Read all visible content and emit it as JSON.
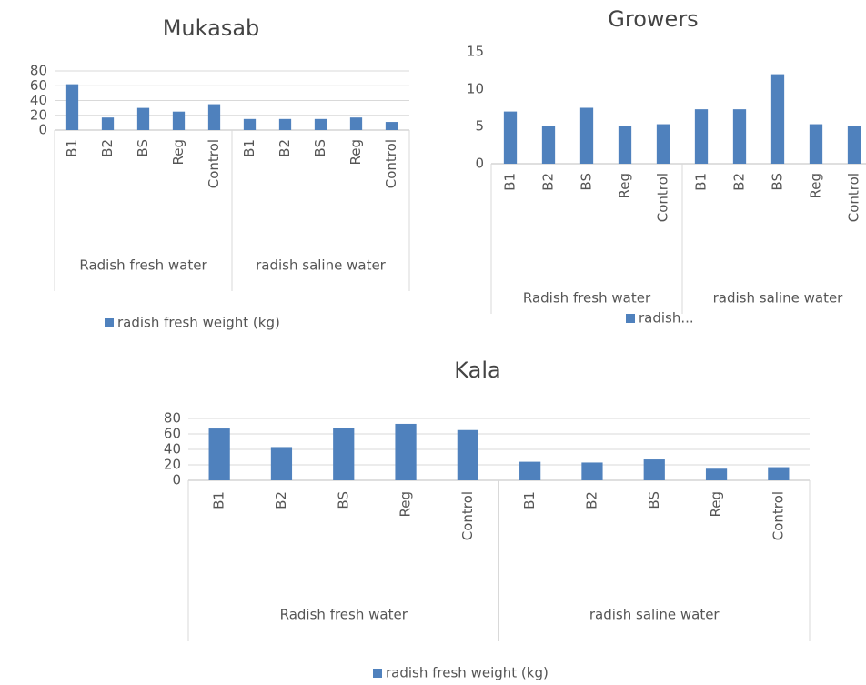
{
  "chart_data": [
    {
      "type": "bar",
      "title": "Mukasab",
      "categories": [
        "B1",
        "B2",
        "BS",
        "Reg",
        "Control",
        "B1",
        "B2",
        "BS",
        "Reg",
        "Control"
      ],
      "groups": [
        "Radish fresh water",
        "radish saline water"
      ],
      "series": [
        {
          "name": "radish fresh weight (kg)",
          "color": "#4f81bd",
          "values": [
            62,
            17,
            30,
            25,
            35,
            15,
            15,
            15,
            17,
            11
          ]
        }
      ],
      "ylim": [
        0,
        80
      ],
      "yticks": [
        0,
        20,
        40,
        60,
        80
      ],
      "grid": true
    },
    {
      "type": "bar",
      "title": "Growers",
      "categories": [
        "B1",
        "B2",
        "BS",
        "Reg",
        "Control",
        "B1",
        "B2",
        "BS",
        "Reg",
        "Control"
      ],
      "groups": [
        "Radish fresh water",
        "radish saline water"
      ],
      "series": [
        {
          "name": "radish...",
          "color": "#4f81bd",
          "values": [
            7,
            5,
            7.5,
            5,
            5.3,
            7.3,
            7.3,
            12,
            5.3,
            5
          ]
        }
      ],
      "ylim": [
        0,
        15
      ],
      "yticks": [
        0,
        5,
        10,
        15
      ],
      "grid": false
    },
    {
      "type": "bar",
      "title": "Kala",
      "categories": [
        "B1",
        "B2",
        "BS",
        "Reg",
        "Control",
        "B1",
        "B2",
        "BS",
        "Reg",
        "Control"
      ],
      "groups": [
        "Radish fresh water",
        "radish saline water"
      ],
      "series": [
        {
          "name": "radish fresh weight (kg)",
          "color": "#4f81bd",
          "values": [
            67,
            43,
            68,
            73,
            65,
            24,
            23,
            27,
            15,
            17
          ]
        }
      ],
      "ylim": [
        0,
        80
      ],
      "yticks": [
        0,
        20,
        40,
        60,
        80
      ],
      "grid": true
    }
  ]
}
